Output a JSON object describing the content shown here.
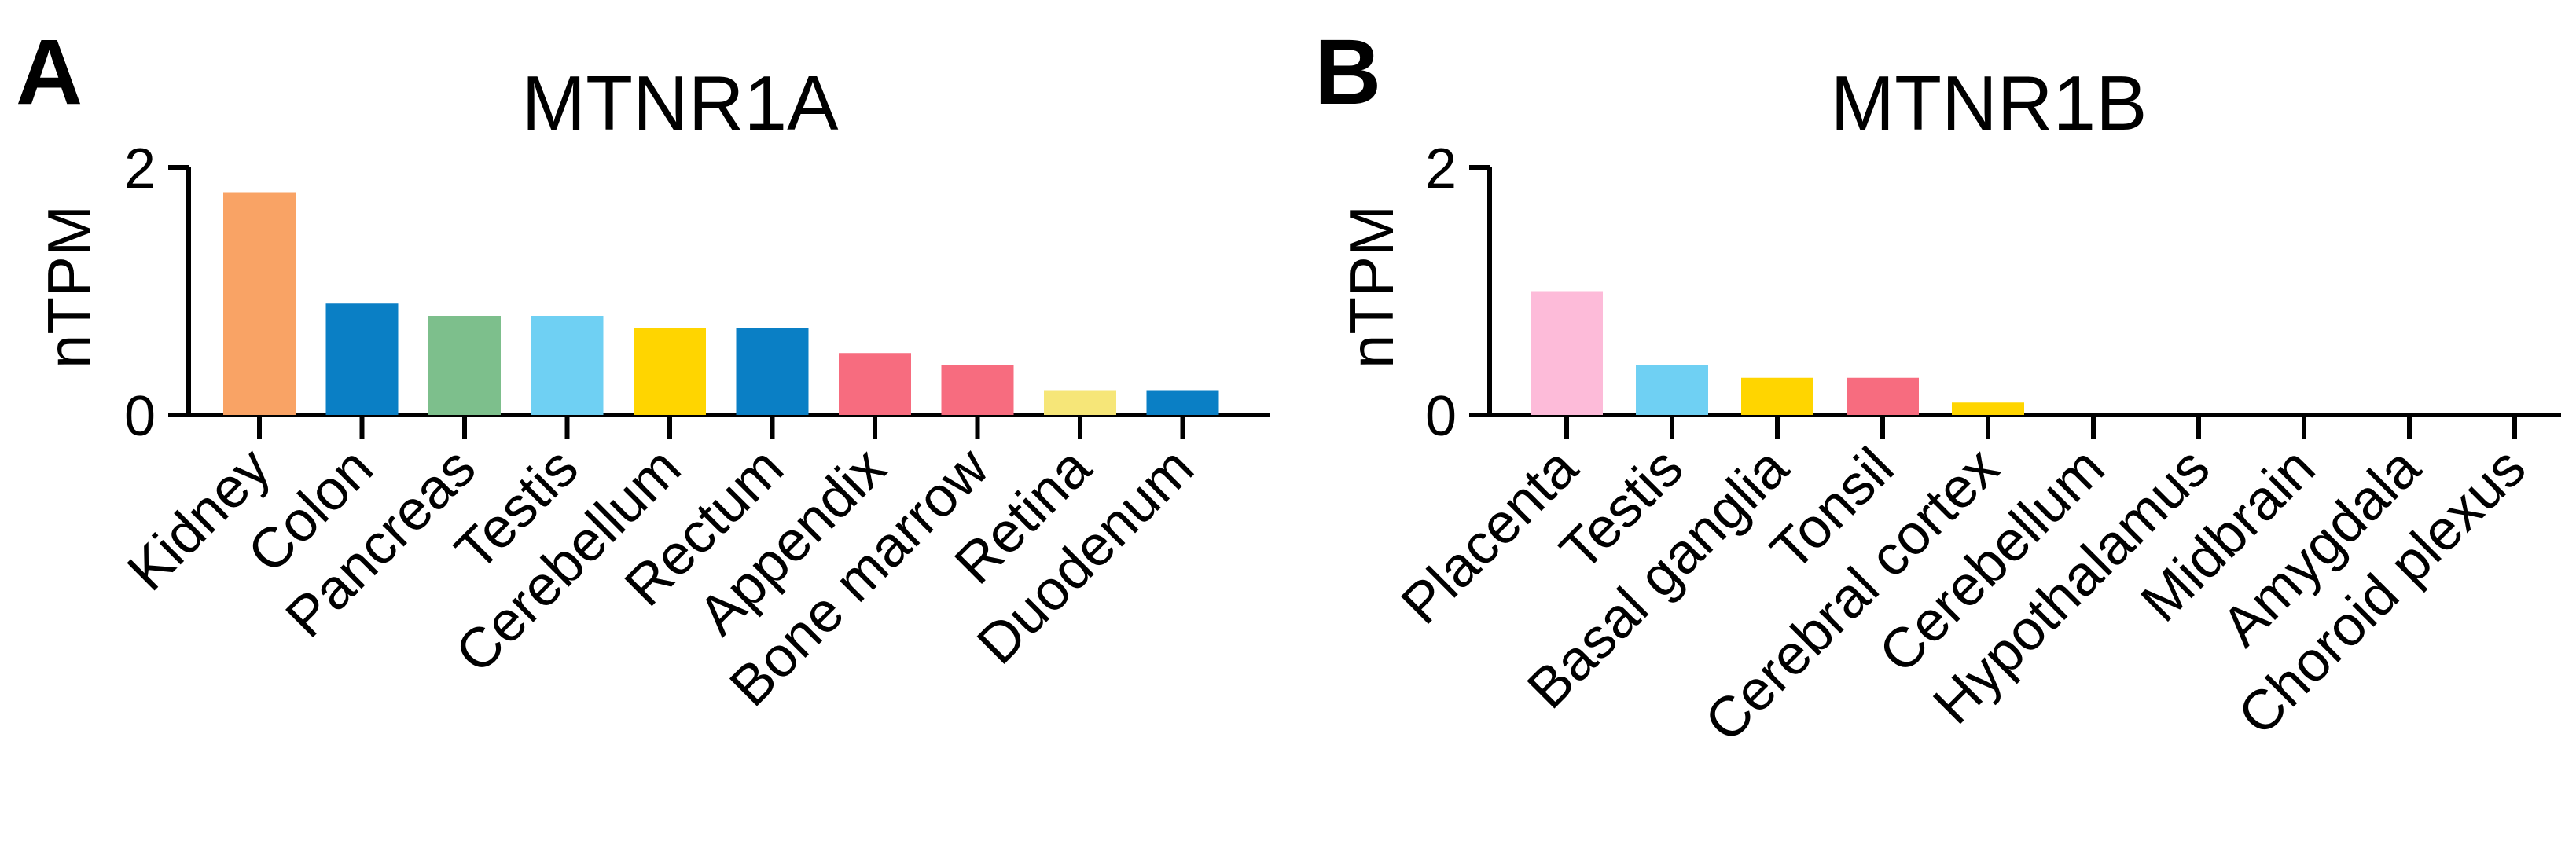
{
  "chart_data": [
    {
      "panel": "A",
      "type": "bar",
      "title": "MTNR1A",
      "ylabel": "nTPM",
      "xlabel": "",
      "ylim": [
        0,
        2
      ],
      "yticks": [
        0,
        2
      ],
      "categories": [
        "Kidney",
        "Colon",
        "Pancreas",
        "Testis",
        "Cerebellum",
        "Rectum",
        "Appendix",
        "Bone marrow",
        "Retina",
        "Duodenum"
      ],
      "values": [
        1.8,
        0.9,
        0.8,
        0.8,
        0.7,
        0.7,
        0.5,
        0.4,
        0.2,
        0.2
      ],
      "colors": [
        "#F9A365",
        "#0A7FC5",
        "#7DBF8C",
        "#6FD0F3",
        "#FFD500",
        "#0A7FC5",
        "#F76C7F",
        "#F76C7F",
        "#F6E678",
        "#0A7FC5"
      ]
    },
    {
      "panel": "B",
      "type": "bar",
      "title": "MTNR1B",
      "ylabel": "nTPM",
      "xlabel": "",
      "ylim": [
        0,
        2
      ],
      "yticks": [
        0,
        2
      ],
      "categories": [
        "Placenta",
        "Testis",
        "Basal ganglia",
        "Tonsil",
        "Cerebral cortex",
        "Cerebellum",
        "Hypothalamus",
        "Midbrain",
        "Amygdala",
        "Choroid plexus"
      ],
      "values": [
        1.0,
        0.4,
        0.3,
        0.3,
        0.1,
        0,
        0,
        0,
        0,
        0
      ],
      "colors": [
        "#FDBBD9",
        "#6FD0F3",
        "#FFD500",
        "#F76C7F",
        "#FFD500",
        "#FFD500",
        "#FFD500",
        "#FFD500",
        "#FFD500",
        "#FFD500"
      ]
    }
  ]
}
